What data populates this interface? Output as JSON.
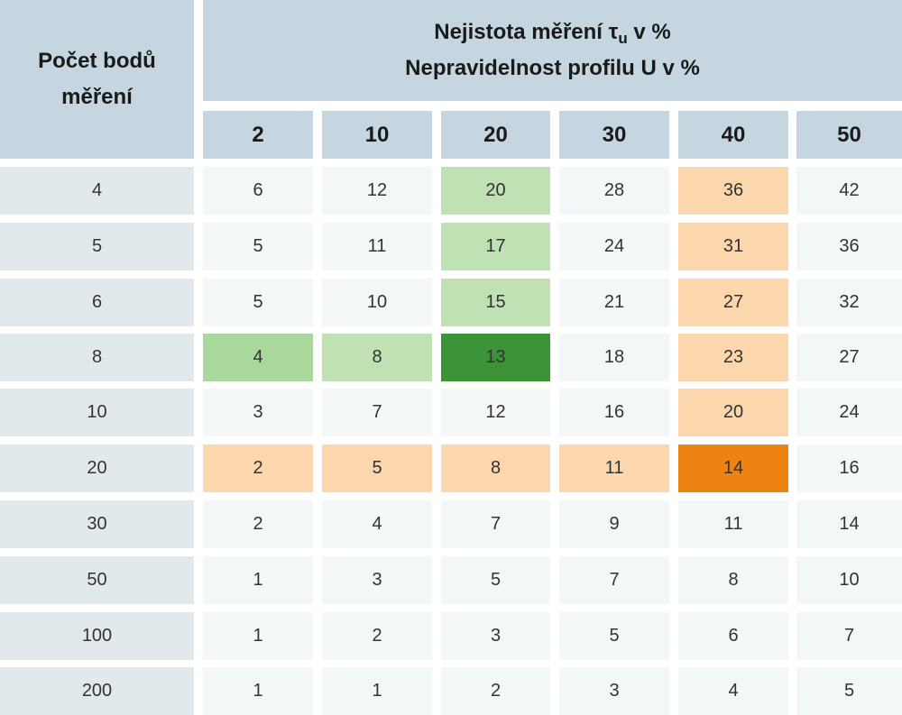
{
  "header": {
    "row_header_line1": "Počet bodů",
    "row_header_line2": "měření",
    "title_line1_pre": "Nejistota měření τ",
    "title_line1_sub": "u",
    "title_line1_post": " v %",
    "title_line2": "Nepravidelnost profilu U v %"
  },
  "columns": [
    "2",
    "10",
    "20",
    "30",
    "40",
    "50"
  ],
  "rows": [
    {
      "label": "4",
      "values": [
        "6",
        "12",
        "20",
        "28",
        "36",
        "42"
      ]
    },
    {
      "label": "5",
      "values": [
        "5",
        "11",
        "17",
        "24",
        "31",
        "36"
      ]
    },
    {
      "label": "6",
      "values": [
        "5",
        "10",
        "15",
        "21",
        "27",
        "32"
      ]
    },
    {
      "label": "8",
      "values": [
        "4",
        "8",
        "13",
        "18",
        "23",
        "27"
      ]
    },
    {
      "label": "10",
      "values": [
        "3",
        "7",
        "12",
        "16",
        "20",
        "24"
      ]
    },
    {
      "label": "20",
      "values": [
        "2",
        "5",
        "8",
        "11",
        "14",
        "16"
      ]
    },
    {
      "label": "30",
      "values": [
        "2",
        "4",
        "7",
        "9",
        "11",
        "14"
      ]
    },
    {
      "label": "50",
      "values": [
        "1",
        "3",
        "5",
        "7",
        "8",
        "10"
      ]
    },
    {
      "label": "100",
      "values": [
        "1",
        "2",
        "3",
        "5",
        "6",
        "7"
      ]
    },
    {
      "label": "200",
      "values": [
        "1",
        "1",
        "2",
        "3",
        "4",
        "5"
      ]
    }
  ],
  "colors": {
    "header_bg": "#c5d6e1",
    "row_header_bg": "#e2e9ed",
    "cell_bg": "#f3f7f8",
    "green_light": "#bfe1b3",
    "green_mid": "#a9d89c",
    "green_dark": "#3d9438",
    "orange_light": "#fcd6ad",
    "orange_dark": "#ef8311"
  },
  "highlights": [
    {
      "row": 0,
      "col": 2,
      "color": "green_light"
    },
    {
      "row": 1,
      "col": 2,
      "color": "green_light"
    },
    {
      "row": 2,
      "col": 2,
      "color": "green_light"
    },
    {
      "row": 3,
      "col": 0,
      "color": "green_mid"
    },
    {
      "row": 3,
      "col": 1,
      "color": "green_light"
    },
    {
      "row": 3,
      "col": 2,
      "color": "green_dark"
    },
    {
      "row": 0,
      "col": 4,
      "color": "orange_light"
    },
    {
      "row": 1,
      "col": 4,
      "color": "orange_light"
    },
    {
      "row": 2,
      "col": 4,
      "color": "orange_light"
    },
    {
      "row": 3,
      "col": 4,
      "color": "orange_light"
    },
    {
      "row": 4,
      "col": 4,
      "color": "orange_light"
    },
    {
      "row": 5,
      "col": 0,
      "color": "orange_light"
    },
    {
      "row": 5,
      "col": 1,
      "color": "orange_light"
    },
    {
      "row": 5,
      "col": 2,
      "color": "orange_light"
    },
    {
      "row": 5,
      "col": 3,
      "color": "orange_light"
    },
    {
      "row": 5,
      "col": 4,
      "color": "orange_dark"
    }
  ]
}
